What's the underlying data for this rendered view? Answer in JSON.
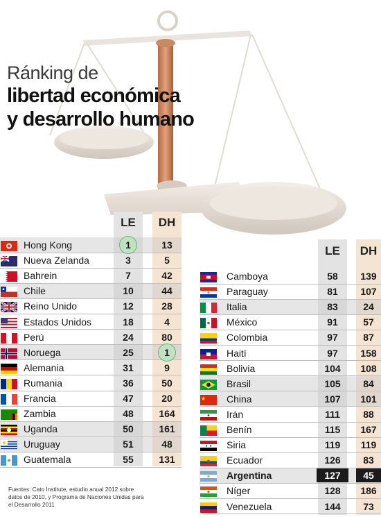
{
  "title": {
    "line1": "Ránking de",
    "line2": "libertad económica",
    "line3": "y desarrollo humano"
  },
  "columns": {
    "le": "LE",
    "dh": "DH"
  },
  "left_table": [
    {
      "country": "Hong Kong",
      "le": "1",
      "dh": "13",
      "flag": "hong-kong-flag",
      "le_circle": true
    },
    {
      "country": "Nueva Zelanda",
      "le": "3",
      "dh": "5",
      "flag": "new-zealand-flag"
    },
    {
      "country": "Bahrein",
      "le": "7",
      "dh": "42",
      "flag": "bahrain-flag"
    },
    {
      "country": "Chile",
      "le": "10",
      "dh": "44",
      "flag": "chile-flag"
    },
    {
      "country": "Reino Unido",
      "le": "12",
      "dh": "28",
      "flag": "united-kingdom-flag"
    },
    {
      "country": "Estados Unidos",
      "le": "18",
      "dh": "4",
      "flag": "united-states-flag"
    },
    {
      "country": "Perú",
      "le": "24",
      "dh": "80",
      "flag": "peru-flag"
    },
    {
      "country": "Noruega",
      "le": "25",
      "dh": "1",
      "flag": "norway-flag",
      "dh_circle": true
    },
    {
      "country": "Alemania",
      "le": "31",
      "dh": "9",
      "flag": "germany-flag"
    },
    {
      "country": "Rumania",
      "le": "36",
      "dh": "50",
      "flag": "romania-flag"
    },
    {
      "country": "Francia",
      "le": "47",
      "dh": "20",
      "flag": "france-flag"
    },
    {
      "country": "Zambia",
      "le": "48",
      "dh": "164",
      "flag": "zambia-flag"
    },
    {
      "country": "Uganda",
      "le": "50",
      "dh": "161",
      "flag": "uganda-flag"
    },
    {
      "country": "Uruguay",
      "le": "51",
      "dh": "48",
      "flag": "uruguay-flag"
    },
    {
      "country": "Guatemala",
      "le": "55",
      "dh": "131",
      "flag": "guatemala-flag"
    }
  ],
  "right_table": [
    {
      "country": "Camboya",
      "le": "58",
      "dh": "139",
      "flag": "cambodia-flag"
    },
    {
      "country": "Paraguay",
      "le": "81",
      "dh": "107",
      "flag": "paraguay-flag"
    },
    {
      "country": "Italia",
      "le": "83",
      "dh": "24",
      "flag": "italy-flag"
    },
    {
      "country": "México",
      "le": "91",
      "dh": "57",
      "flag": "mexico-flag"
    },
    {
      "country": "Colombia",
      "le": "97",
      "dh": "87",
      "flag": "colombia-flag"
    },
    {
      "country": "Haití",
      "le": "97",
      "dh": "158",
      "flag": "haiti-flag"
    },
    {
      "country": "Bolivia",
      "le": "104",
      "dh": "108",
      "flag": "bolivia-flag"
    },
    {
      "country": "Brasil",
      "le": "105",
      "dh": "84",
      "flag": "brazil-flag"
    },
    {
      "country": "China",
      "le": "107",
      "dh": "101",
      "flag": "china-flag"
    },
    {
      "country": "Irán",
      "le": "111",
      "dh": "88",
      "flag": "iran-flag"
    },
    {
      "country": "Benín",
      "le": "115",
      "dh": "167",
      "flag": "benin-flag"
    },
    {
      "country": "Siria",
      "le": "119",
      "dh": "119",
      "flag": "syria-flag"
    },
    {
      "country": "Ecuador",
      "le": "126",
      "dh": "83",
      "flag": "ecuador-flag"
    },
    {
      "country": "Argentina",
      "le": "127",
      "dh": "45",
      "flag": "argentina-flag",
      "highlight": true
    },
    {
      "country": "Níger",
      "le": "128",
      "dh": "186",
      "flag": "niger-flag"
    },
    {
      "country": "Venezuela",
      "le": "144",
      "dh": "73",
      "flag": "venezuela-flag"
    }
  ],
  "source": "Fuentes: Cato Institute, estudio anual 2012 sobre datos de 2010, y Programa de Naciones Unidas para el Desarrollo 2011",
  "colors": {
    "le_column": "#e3e3e3",
    "dh_column": "#f6e4d2",
    "row_shade": "#e6e6e6",
    "circle": "#bfe2c2",
    "highlight": "#1b1b1b"
  }
}
